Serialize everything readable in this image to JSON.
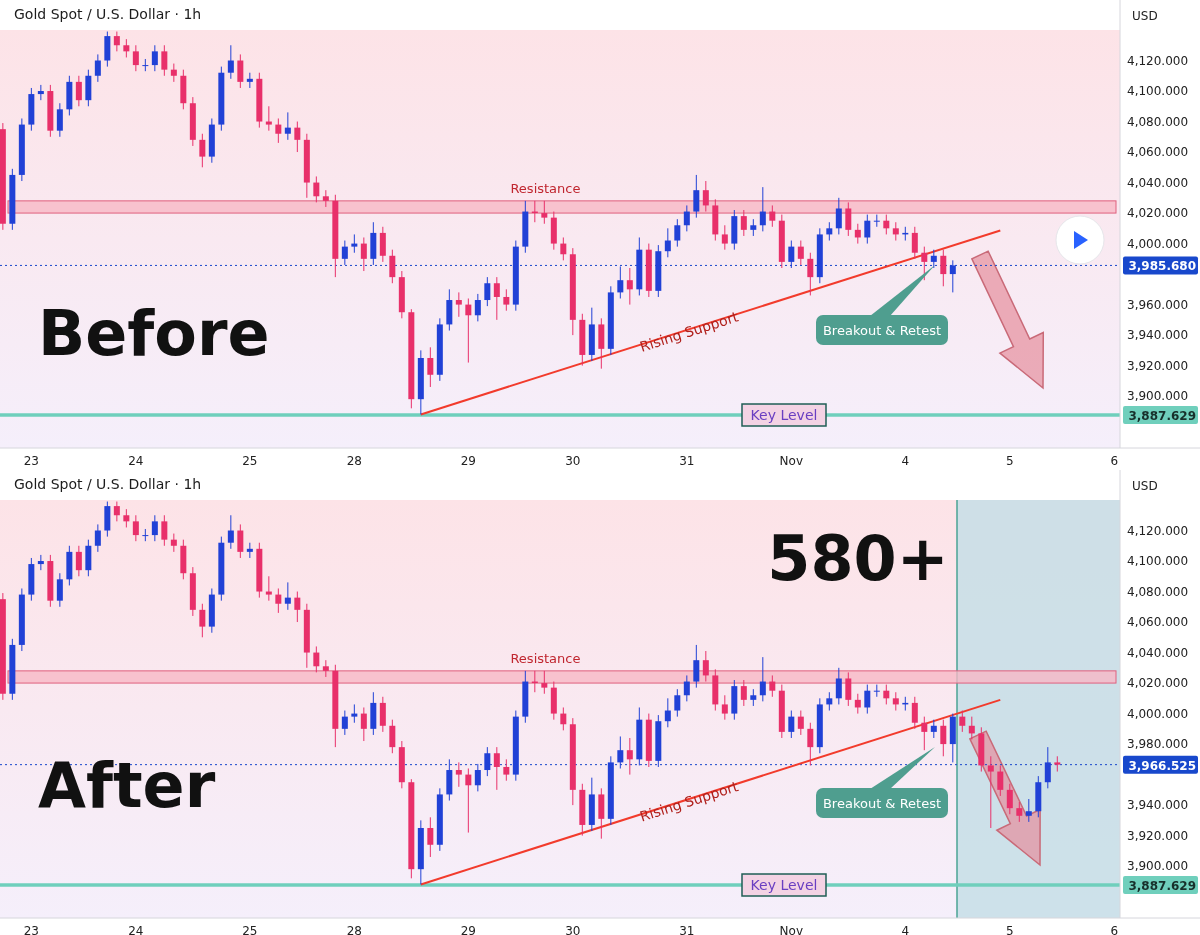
{
  "chart_data": [
    {
      "type": "candlestick",
      "title": "Gold Spot / U.S. Dollar · 1h",
      "categories": [
        null,
        null,
        null,
        "23",
        null,
        null,
        null,
        null,
        null,
        null,
        null,
        null,
        null,
        null,
        "24",
        null,
        null,
        null,
        null,
        null,
        null,
        null,
        null,
        null,
        null,
        null,
        "25",
        null,
        null,
        null,
        null,
        null,
        null,
        null,
        null,
        null,
        null,
        "28",
        null,
        null,
        null,
        null,
        null,
        null,
        null,
        null,
        null,
        null,
        null,
        "29",
        null,
        null,
        null,
        null,
        null,
        null,
        null,
        null,
        null,
        null,
        "30",
        null,
        null,
        null,
        null,
        null,
        null,
        null,
        null,
        null,
        null,
        null,
        "31",
        null,
        null,
        null,
        null,
        null,
        null,
        null,
        null,
        null,
        null,
        "Nov",
        null,
        null,
        null,
        null,
        null,
        null,
        null,
        null,
        null,
        null,
        null,
        "4",
        null,
        null,
        null,
        null,
        null,
        null,
        null,
        null,
        null,
        null,
        "5",
        null,
        null,
        null,
        null,
        null,
        null,
        null,
        null,
        null,
        null,
        "6"
      ],
      "ohlc": [
        [
          4075,
          4079,
          4009,
          4013
        ],
        [
          4013,
          4049,
          4009,
          4045
        ],
        [
          4045,
          4082,
          4041,
          4078
        ],
        [
          4078,
          4102,
          4074,
          4098
        ],
        [
          4098,
          4104,
          4094,
          4100
        ],
        [
          4100,
          4104,
          4070,
          4074
        ],
        [
          4074,
          4092,
          4070,
          4088
        ],
        [
          4088,
          4110,
          4084,
          4106
        ],
        [
          4106,
          4110,
          4090,
          4094
        ],
        [
          4094,
          4114,
          4090,
          4110
        ],
        [
          4110,
          4124,
          4106,
          4120
        ],
        [
          4120,
          4139,
          4116,
          4136
        ],
        [
          4136,
          4139,
          4126,
          4130
        ],
        [
          4130,
          4134,
          4122,
          4126
        ],
        [
          4126,
          4130,
          4113,
          4117
        ],
        [
          4117,
          4121,
          4113,
          4117
        ],
        [
          4117,
          4130,
          4113,
          4126
        ],
        [
          4126,
          4130,
          4110,
          4114
        ],
        [
          4114,
          4118,
          4106,
          4110
        ],
        [
          4110,
          4114,
          4088,
          4092
        ],
        [
          4092,
          4096,
          4064,
          4068
        ],
        [
          4068,
          4072,
          4050,
          4057
        ],
        [
          4057,
          4082,
          4053,
          4078
        ],
        [
          4078,
          4116,
          4074,
          4112
        ],
        [
          4112,
          4130,
          4108,
          4120
        ],
        [
          4120,
          4124,
          4102,
          4106
        ],
        [
          4106,
          4112,
          4102,
          4108
        ],
        [
          4108,
          4112,
          4076,
          4080
        ],
        [
          4080,
          4090,
          4074,
          4078
        ],
        [
          4078,
          4082,
          4066,
          4072
        ],
        [
          4072,
          4086,
          4068,
          4076
        ],
        [
          4076,
          4080,
          4060,
          4068
        ],
        [
          4068,
          4072,
          4030,
          4040
        ],
        [
          4040,
          4044,
          4027,
          4031
        ],
        [
          4031,
          4035,
          4024,
          4028
        ],
        [
          4028,
          4032,
          3978,
          3990
        ],
        [
          3990,
          4002,
          3986,
          3998
        ],
        [
          3998,
          4006,
          3994,
          4000
        ],
        [
          4000,
          4004,
          3982,
          3990
        ],
        [
          3990,
          4014,
          3986,
          4007
        ],
        [
          4007,
          4011,
          3988,
          3992
        ],
        [
          3992,
          3996,
          3974,
          3978
        ],
        [
          3978,
          3982,
          3951,
          3955
        ],
        [
          3955,
          3957,
          3892,
          3898
        ],
        [
          3898,
          3930,
          3888,
          3925
        ],
        [
          3925,
          3932,
          3906,
          3914
        ],
        [
          3914,
          3951,
          3910,
          3947
        ],
        [
          3947,
          3970,
          3943,
          3963
        ],
        [
          3963,
          3968,
          3952,
          3960
        ],
        [
          3960,
          3964,
          3922,
          3953
        ],
        [
          3953,
          3967,
          3949,
          3963
        ],
        [
          3963,
          3978,
          3959,
          3974
        ],
        [
          3974,
          3978,
          3950,
          3965
        ],
        [
          3965,
          3970,
          3956,
          3960
        ],
        [
          3960,
          4002,
          3956,
          3998
        ],
        [
          3998,
          4028,
          3994,
          4021
        ],
        [
          4021,
          4028,
          4014,
          4020
        ],
        [
          4020,
          4028,
          4013,
          4017
        ],
        [
          4017,
          4021,
          3996,
          4000
        ],
        [
          4000,
          4004,
          3989,
          3993
        ],
        [
          3993,
          3997,
          3940,
          3950
        ],
        [
          3950,
          3954,
          3920,
          3927
        ],
        [
          3927,
          3958,
          3923,
          3947
        ],
        [
          3947,
          3951,
          3918,
          3931
        ],
        [
          3931,
          3972,
          3927,
          3968
        ],
        [
          3968,
          3985,
          3964,
          3976
        ],
        [
          3976,
          3984,
          3960,
          3970
        ],
        [
          3970,
          4004,
          3966,
          3996
        ],
        [
          3996,
          4000,
          3965,
          3969
        ],
        [
          3969,
          3999,
          3965,
          3995
        ],
        [
          3995,
          4010,
          3991,
          4002
        ],
        [
          4002,
          4016,
          3998,
          4012
        ],
        [
          4012,
          4025,
          4008,
          4021
        ],
        [
          4021,
          4045,
          4017,
          4035
        ],
        [
          4035,
          4041,
          4021,
          4025
        ],
        [
          4025,
          4029,
          4002,
          4006
        ],
        [
          4006,
          4012,
          3996,
          4000
        ],
        [
          4000,
          4022,
          3996,
          4018
        ],
        [
          4018,
          4022,
          4005,
          4009
        ],
        [
          4009,
          4016,
          4005,
          4012
        ],
        [
          4012,
          4037,
          4008,
          4021
        ],
        [
          4021,
          4025,
          4011,
          4015
        ],
        [
          4015,
          4019,
          3984,
          3988
        ],
        [
          3988,
          4002,
          3984,
          3998
        ],
        [
          3998,
          4002,
          3986,
          3990
        ],
        [
          3990,
          3994,
          3966,
          3978
        ],
        [
          3978,
          4010,
          3974,
          4006
        ],
        [
          4006,
          4014,
          4002,
          4010
        ],
        [
          4010,
          4030,
          4006,
          4023
        ],
        [
          4023,
          4027,
          4005,
          4009
        ],
        [
          4009,
          4013,
          4000,
          4004
        ],
        [
          4004,
          4019,
          4000,
          4015
        ],
        [
          4015,
          4019,
          4011,
          4015
        ],
        [
          4015,
          4019,
          4006,
          4010
        ],
        [
          4010,
          4014,
          4002,
          4006
        ],
        [
          4006,
          4011,
          4002,
          4007
        ],
        [
          4007,
          4011,
          3990,
          3994
        ],
        [
          3994,
          3998,
          3976,
          3988
        ],
        [
          3988,
          3996,
          3984,
          3992
        ],
        [
          3992,
          3996,
          3972,
          3980
        ],
        [
          3980,
          3989,
          3968,
          3985.68
        ],
        null,
        null,
        null,
        null,
        null,
        null,
        null,
        null,
        null,
        null,
        null,
        null,
        null,
        null,
        null,
        null,
        null
      ],
      "series": [
        {
          "type": "line",
          "name": "Rising Support",
          "color": "#f23b2c",
          "values": [
            null,
            null,
            null,
            null,
            null,
            null,
            null,
            null,
            null,
            null,
            null,
            null,
            null,
            null,
            null,
            null,
            null,
            null,
            null,
            null,
            null,
            null,
            null,
            null,
            null,
            null,
            null,
            null,
            null,
            null,
            null,
            null,
            null,
            null,
            null,
            null,
            null,
            null,
            null,
            null,
            null,
            null,
            null,
            null,
            3888,
            null,
            null,
            null,
            null,
            null,
            null,
            null,
            null,
            null,
            null,
            null,
            null,
            null,
            null,
            null,
            null,
            null,
            null,
            null,
            null,
            null,
            null,
            null,
            null,
            null,
            null,
            null,
            null,
            null,
            null,
            null,
            null,
            null,
            null,
            null,
            null,
            null,
            null,
            null,
            null,
            null,
            null,
            null,
            null,
            null,
            null,
            null,
            null,
            null,
            null,
            null,
            null,
            null,
            null,
            null,
            null,
            null,
            null,
            null,
            null,
            4008.6,
            null,
            null,
            null,
            null,
            null,
            null,
            null,
            null,
            null,
            null,
            null,
            null
          ]
        }
      ],
      "ylim": [
        3866,
        4140
      ],
      "yticks": [
        {
          "value": 3900,
          "label": "3,900.000"
        },
        {
          "value": 3920,
          "label": "3,920.000"
        },
        {
          "value": 3940,
          "label": "3,940.000"
        },
        {
          "value": 3960,
          "label": "3,960.000"
        },
        {
          "value": 4000,
          "label": "4,000.000"
        },
        {
          "value": 4020,
          "label": "4,020.000"
        },
        {
          "value": 4040,
          "label": "4,040.000"
        },
        {
          "value": 4060,
          "label": "4,060.000"
        },
        {
          "value": 4080,
          "label": "4,080.000"
        },
        {
          "value": 4100,
          "label": "4,100.000"
        },
        {
          "value": 4120,
          "label": "4,120.000"
        }
      ],
      "bands": [
        {
          "axis": "y",
          "from": 4020,
          "to": 4028,
          "label": "Resistance",
          "color": "#f7b8c6"
        }
      ],
      "ref_lines": [
        {
          "axis": "y",
          "value": 3985.68,
          "color": "#1848cc",
          "line_style": "dotted"
        },
        {
          "axis": "y",
          "value": 3887.629,
          "label": "Key Level",
          "color": "#6fcfbc",
          "line_style": "solid"
        }
      ],
      "annotations": [
        "USD",
        "Before",
        "Breakout & Retest",
        "3,985.680",
        "3,887.629"
      ]
    },
    {
      "type": "candlestick",
      "title": "Gold Spot / U.S. Dollar · 1h",
      "categories": [
        null,
        null,
        null,
        "23",
        null,
        null,
        null,
        null,
        null,
        null,
        null,
        null,
        null,
        null,
        "24",
        null,
        null,
        null,
        null,
        null,
        null,
        null,
        null,
        null,
        null,
        null,
        "25",
        null,
        null,
        null,
        null,
        null,
        null,
        null,
        null,
        null,
        null,
        "28",
        null,
        null,
        null,
        null,
        null,
        null,
        null,
        null,
        null,
        null,
        null,
        "29",
        null,
        null,
        null,
        null,
        null,
        null,
        null,
        null,
        null,
        null,
        "30",
        null,
        null,
        null,
        null,
        null,
        null,
        null,
        null,
        null,
        null,
        null,
        "31",
        null,
        null,
        null,
        null,
        null,
        null,
        null,
        null,
        null,
        null,
        "Nov",
        null,
        null,
        null,
        null,
        null,
        null,
        null,
        null,
        null,
        null,
        null,
        "4",
        null,
        null,
        null,
        null,
        null,
        null,
        null,
        null,
        null,
        null,
        "5",
        null,
        null,
        null,
        null,
        null,
        null,
        null,
        null,
        null,
        null,
        "6"
      ],
      "ohlc": [
        [
          4075,
          4079,
          4009,
          4013
        ],
        [
          4013,
          4049,
          4009,
          4045
        ],
        [
          4045,
          4082,
          4041,
          4078
        ],
        [
          4078,
          4102,
          4074,
          4098
        ],
        [
          4098,
          4104,
          4094,
          4100
        ],
        [
          4100,
          4104,
          4070,
          4074
        ],
        [
          4074,
          4092,
          4070,
          4088
        ],
        [
          4088,
          4110,
          4084,
          4106
        ],
        [
          4106,
          4110,
          4090,
          4094
        ],
        [
          4094,
          4114,
          4090,
          4110
        ],
        [
          4110,
          4124,
          4106,
          4120
        ],
        [
          4120,
          4139,
          4116,
          4136
        ],
        [
          4136,
          4139,
          4126,
          4130
        ],
        [
          4130,
          4134,
          4122,
          4126
        ],
        [
          4126,
          4130,
          4113,
          4117
        ],
        [
          4117,
          4121,
          4113,
          4117
        ],
        [
          4117,
          4130,
          4113,
          4126
        ],
        [
          4126,
          4130,
          4110,
          4114
        ],
        [
          4114,
          4118,
          4106,
          4110
        ],
        [
          4110,
          4114,
          4088,
          4092
        ],
        [
          4092,
          4096,
          4064,
          4068
        ],
        [
          4068,
          4072,
          4050,
          4057
        ],
        [
          4057,
          4082,
          4053,
          4078
        ],
        [
          4078,
          4116,
          4074,
          4112
        ],
        [
          4112,
          4130,
          4108,
          4120
        ],
        [
          4120,
          4124,
          4102,
          4106
        ],
        [
          4106,
          4112,
          4102,
          4108
        ],
        [
          4108,
          4112,
          4076,
          4080
        ],
        [
          4080,
          4090,
          4074,
          4078
        ],
        [
          4078,
          4082,
          4066,
          4072
        ],
        [
          4072,
          4086,
          4068,
          4076
        ],
        [
          4076,
          4080,
          4060,
          4068
        ],
        [
          4068,
          4072,
          4030,
          4040
        ],
        [
          4040,
          4044,
          4027,
          4031
        ],
        [
          4031,
          4035,
          4024,
          4028
        ],
        [
          4028,
          4032,
          3978,
          3990
        ],
        [
          3990,
          4002,
          3986,
          3998
        ],
        [
          3998,
          4006,
          3994,
          4000
        ],
        [
          4000,
          4004,
          3982,
          3990
        ],
        [
          3990,
          4014,
          3986,
          4007
        ],
        [
          4007,
          4011,
          3988,
          3992
        ],
        [
          3992,
          3996,
          3974,
          3978
        ],
        [
          3978,
          3982,
          3951,
          3955
        ],
        [
          3955,
          3957,
          3892,
          3898
        ],
        [
          3898,
          3930,
          3888,
          3925
        ],
        [
          3925,
          3932,
          3906,
          3914
        ],
        [
          3914,
          3951,
          3910,
          3947
        ],
        [
          3947,
          3970,
          3943,
          3963
        ],
        [
          3963,
          3968,
          3952,
          3960
        ],
        [
          3960,
          3964,
          3922,
          3953
        ],
        [
          3953,
          3967,
          3949,
          3963
        ],
        [
          3963,
          3978,
          3959,
          3974
        ],
        [
          3974,
          3978,
          3950,
          3965
        ],
        [
          3965,
          3970,
          3956,
          3960
        ],
        [
          3960,
          4002,
          3956,
          3998
        ],
        [
          3998,
          4028,
          3994,
          4021
        ],
        [
          4021,
          4028,
          4014,
          4020
        ],
        [
          4020,
          4028,
          4013,
          4017
        ],
        [
          4017,
          4021,
          3996,
          4000
        ],
        [
          4000,
          4004,
          3989,
          3993
        ],
        [
          3993,
          3997,
          3940,
          3950
        ],
        [
          3950,
          3954,
          3920,
          3927
        ],
        [
          3927,
          3958,
          3923,
          3947
        ],
        [
          3947,
          3951,
          3918,
          3931
        ],
        [
          3931,
          3972,
          3927,
          3968
        ],
        [
          3968,
          3985,
          3964,
          3976
        ],
        [
          3976,
          3984,
          3960,
          3970
        ],
        [
          3970,
          4004,
          3966,
          3996
        ],
        [
          3996,
          4000,
          3965,
          3969
        ],
        [
          3969,
          3999,
          3965,
          3995
        ],
        [
          3995,
          4010,
          3991,
          4002
        ],
        [
          4002,
          4016,
          3998,
          4012
        ],
        [
          4012,
          4025,
          4008,
          4021
        ],
        [
          4021,
          4045,
          4017,
          4035
        ],
        [
          4035,
          4041,
          4021,
          4025
        ],
        [
          4025,
          4029,
          4002,
          4006
        ],
        [
          4006,
          4012,
          3996,
          4000
        ],
        [
          4000,
          4022,
          3996,
          4018
        ],
        [
          4018,
          4022,
          4005,
          4009
        ],
        [
          4009,
          4016,
          4005,
          4012
        ],
        [
          4012,
          4037,
          4008,
          4021
        ],
        [
          4021,
          4025,
          4011,
          4015
        ],
        [
          4015,
          4019,
          3984,
          3988
        ],
        [
          3988,
          4002,
          3984,
          3998
        ],
        [
          3998,
          4002,
          3986,
          3990
        ],
        [
          3990,
          3994,
          3966,
          3978
        ],
        [
          3978,
          4010,
          3974,
          4006
        ],
        [
          4006,
          4014,
          4002,
          4010
        ],
        [
          4010,
          4030,
          4006,
          4023
        ],
        [
          4023,
          4027,
          4005,
          4009
        ],
        [
          4009,
          4013,
          4000,
          4004
        ],
        [
          4004,
          4019,
          4000,
          4015
        ],
        [
          4015,
          4019,
          4011,
          4015
        ],
        [
          4015,
          4019,
          4006,
          4010
        ],
        [
          4010,
          4014,
          4002,
          4006
        ],
        [
          4006,
          4011,
          4002,
          4007
        ],
        [
          4007,
          4011,
          3990,
          3994
        ],
        [
          3994,
          3998,
          3976,
          3988
        ],
        [
          3988,
          3996,
          3984,
          3992
        ],
        [
          3992,
          3996,
          3972,
          3980
        ],
        [
          3980,
          4000,
          3968,
          3998
        ],
        [
          3998,
          4002,
          3988,
          3992
        ],
        [
          3992,
          3998,
          3983,
          3987
        ],
        [
          3987,
          3991,
          3962,
          3966
        ],
        [
          3966,
          3972,
          3925,
          3962
        ],
        [
          3962,
          3966,
          3946,
          3950
        ],
        [
          3950,
          3954,
          3934,
          3938
        ],
        [
          3938,
          3942,
          3929,
          3933
        ],
        [
          3933,
          3944,
          3929,
          3936
        ],
        [
          3936,
          3959,
          3932,
          3955
        ],
        [
          3955,
          3978,
          3951,
          3968
        ],
        [
          3968,
          3972,
          3962,
          3966.525
        ],
        null,
        null,
        null,
        null,
        null,
        null
      ],
      "series": [
        {
          "type": "line",
          "name": "Rising Support",
          "color": "#f23b2c",
          "values": [
            null,
            null,
            null,
            null,
            null,
            null,
            null,
            null,
            null,
            null,
            null,
            null,
            null,
            null,
            null,
            null,
            null,
            null,
            null,
            null,
            null,
            null,
            null,
            null,
            null,
            null,
            null,
            null,
            null,
            null,
            null,
            null,
            null,
            null,
            null,
            null,
            null,
            null,
            null,
            null,
            null,
            null,
            null,
            null,
            3888,
            null,
            null,
            null,
            null,
            null,
            null,
            null,
            null,
            null,
            null,
            null,
            null,
            null,
            null,
            null,
            null,
            null,
            null,
            null,
            null,
            null,
            null,
            null,
            null,
            null,
            null,
            null,
            null,
            null,
            null,
            null,
            null,
            null,
            null,
            null,
            null,
            null,
            null,
            null,
            null,
            null,
            null,
            null,
            null,
            null,
            null,
            null,
            null,
            null,
            null,
            null,
            null,
            null,
            null,
            null,
            null,
            null,
            null,
            null,
            null,
            4009,
            null,
            null,
            null,
            null,
            null,
            null,
            null,
            null,
            null,
            null,
            null,
            null
          ]
        }
      ],
      "ylim": [
        3866,
        4140
      ],
      "yticks": [
        {
          "value": 3900,
          "label": "3,900.000"
        },
        {
          "value": 3920,
          "label": "3,920.000"
        },
        {
          "value": 3940,
          "label": "3,940.000"
        },
        {
          "value": 3980,
          "label": "3,980.000"
        },
        {
          "value": 4000,
          "label": "4,000.000"
        },
        {
          "value": 4020,
          "label": "4,020.000"
        },
        {
          "value": 4040,
          "label": "4,040.000"
        },
        {
          "value": 4060,
          "label": "4,060.000"
        },
        {
          "value": 4080,
          "label": "4,080.000"
        },
        {
          "value": 4100,
          "label": "4,100.000"
        },
        {
          "value": 4120,
          "label": "4,120.000"
        }
      ],
      "bands": [
        {
          "axis": "y",
          "from": 4020,
          "to": 4028,
          "label": "Resistance",
          "color": "#f7b8c6"
        }
      ],
      "ref_lines": [
        {
          "axis": "y",
          "value": 3966.525,
          "color": "#1848cc",
          "line_style": "dotted"
        },
        {
          "axis": "y",
          "value": 3887.629,
          "label": "Key Level",
          "color": "#6fcfbc",
          "line_style": "solid"
        }
      ],
      "annotations": [
        "USD",
        "After",
        "Breakout & Retest",
        "3,966.525",
        "3,887.629",
        "580+"
      ]
    }
  ]
}
